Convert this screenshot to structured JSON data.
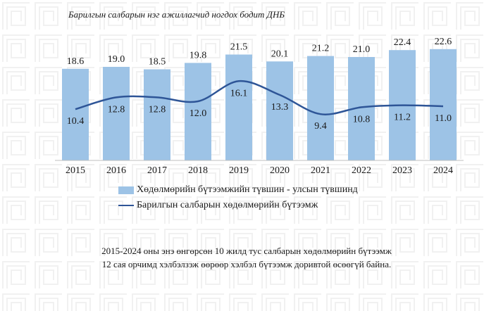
{
  "chart_data": {
    "type": "bar",
    "title": "Барилгын салбарын нэг ажиллагчид ногдох бодит ДНБ",
    "categories": [
      "2015",
      "2016",
      "2017",
      "2018",
      "2019",
      "2020",
      "2021",
      "2022",
      "2023",
      "2024"
    ],
    "series": [
      {
        "name": "Хөдөлмөрийн бүтээмжийн түвшин - улсын түвшинд",
        "type": "bar",
        "color": "#9dc3e6",
        "values": [
          18.6,
          19.0,
          18.5,
          19.8,
          21.5,
          20.1,
          21.2,
          21.0,
          22.4,
          22.6
        ]
      },
      {
        "name": "Барилгын салбарын хөдөлмөрийн бүтээмж",
        "type": "line",
        "color": "#2e5597",
        "values": [
          10.4,
          12.8,
          12.8,
          12.0,
          16.1,
          13.3,
          9.4,
          10.8,
          11.2,
          11.0
        ]
      }
    ],
    "grid": false,
    "legend": "bottom-center"
  },
  "note": {
    "line1": "2015-2024 оны энэ өнгөрсөн 10 жилд тус салбарын хөдөлмөрийн бүтээмж",
    "line2": "12 сая орчимд хэлбэлзэж өөрөөр хэлбэл бүтээмж доривтой өсөөгүй байна."
  }
}
